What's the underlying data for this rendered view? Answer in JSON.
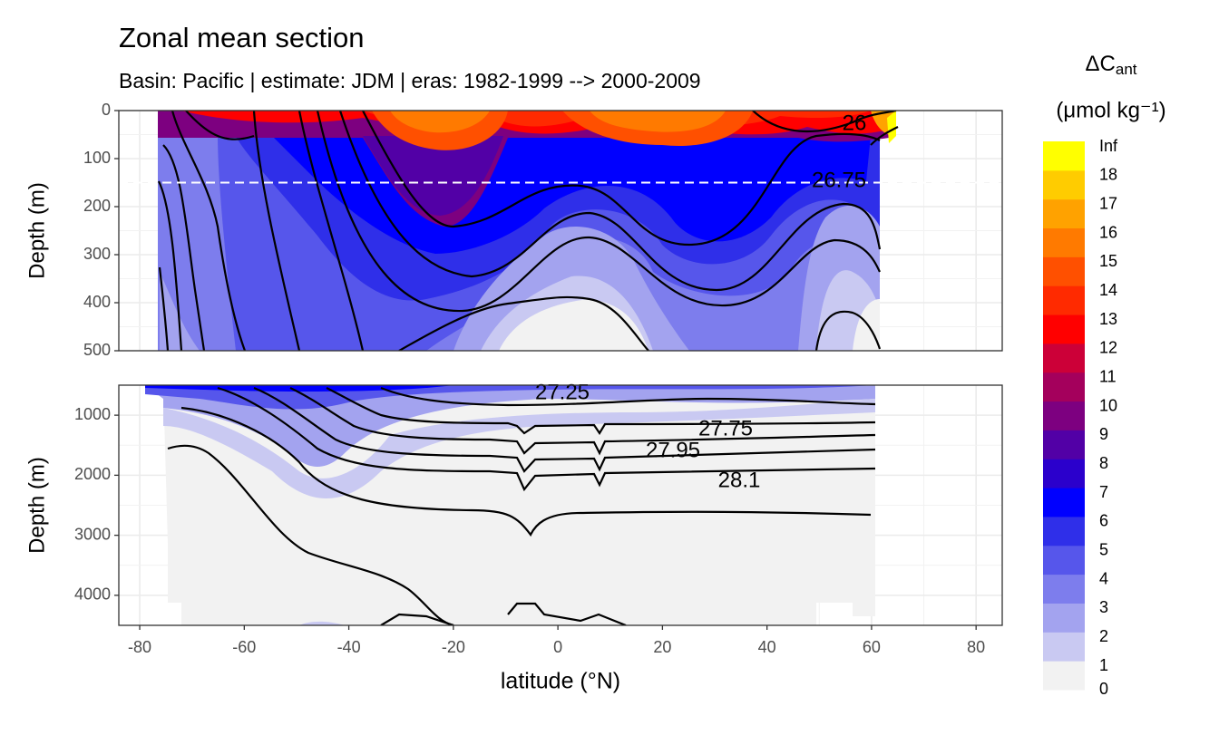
{
  "chart_data": {
    "type": "contour",
    "title": "Zonal mean section",
    "subtitle": "Basin: Pacific | estimate: JDM  | eras: 1982-1999 --> 2000-2009",
    "xlabel": "latitude (°N)",
    "xlim": [
      -84,
      85
    ],
    "xticks": [
      -80,
      -60,
      -40,
      -20,
      0,
      20,
      40,
      60,
      80
    ],
    "grid": true,
    "hline": 150,
    "panels": [
      {
        "ylabel": "Depth (m)",
        "ylim": [
          0,
          500
        ],
        "yticks": [
          0,
          100,
          200,
          300,
          400,
          500
        ]
      },
      {
        "ylabel": "Depth (m)",
        "ylim": [
          500,
          4500
        ],
        "yticks": [
          1000,
          2000,
          3000,
          4000
        ]
      }
    ],
    "contour_labels": [
      "26",
      "26.75",
      "27.25",
      "27.75",
      "27.95",
      "28.1"
    ],
    "legend_title": [
      "ΔC",
      "ant"
    ],
    "legend_unit": "(μmol kg⁻¹)",
    "legend_labels": [
      0,
      1,
      2,
      3,
      4,
      5,
      6,
      7,
      8,
      9,
      10,
      11,
      12,
      13,
      14,
      15,
      16,
      17,
      18,
      "Inf"
    ],
    "legend_colors": [
      "#f2f2f2",
      "#c9c9f2",
      "#a3a3ef",
      "#7d7ded",
      "#5656eb",
      "#2f2fe9",
      "#0000ff",
      "#2b00cc",
      "#5200a6",
      "#7d0080",
      "#a4005c",
      "#cc0038",
      "#ff0000",
      "#ff2a00",
      "#ff5000",
      "#ff7a00",
      "#ffa200",
      "#ffcc00",
      "#ffff00"
    ]
  }
}
